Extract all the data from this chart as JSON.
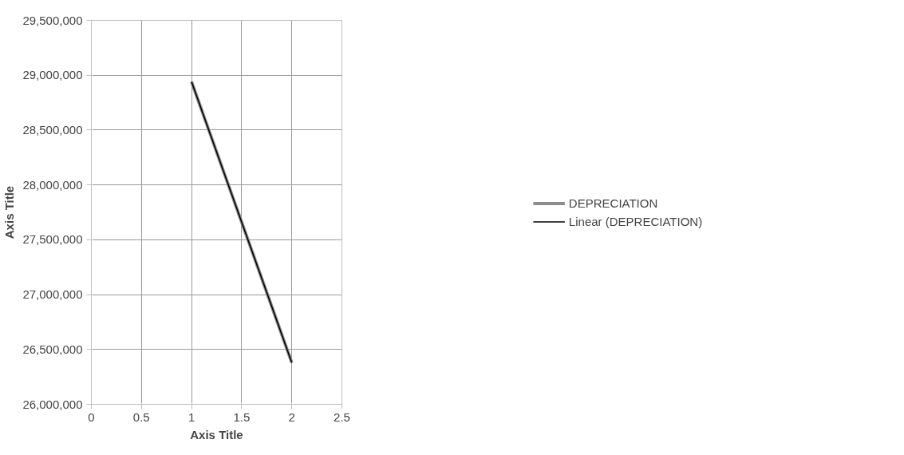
{
  "chart_data": {
    "type": "line",
    "xlabel": "Axis Title",
    "ylabel": "Axis Title",
    "x": [
      1,
      2
    ],
    "series": [
      {
        "name": "DEPRECIATION",
        "color": "#8c8c8c",
        "values": [
          28940000,
          26380000
        ]
      },
      {
        "name": "Linear (DEPRECIATION)",
        "type": "line",
        "x": [
          1,
          2
        ],
        "color": "#000000",
        "values": [
          28940000,
          26380000
        ]
      }
    ],
    "xlim": [
      0,
      2.5
    ],
    "xticks": [
      0,
      0.5,
      1,
      1.5,
      2,
      2.5
    ],
    "ylim": [
      26000000,
      29500000
    ],
    "yticks": [
      {
        "value": 26000000,
        "label": "26,000,000"
      },
      {
        "value": 26500000,
        "label": "26,500,000"
      },
      {
        "value": 27000000,
        "label": "27,000,000"
      },
      {
        "value": 27500000,
        "label": "27,500,000"
      },
      {
        "value": 28000000,
        "label": "28,000,000"
      },
      {
        "value": 28500000,
        "label": "28,500,000"
      },
      {
        "value": 29000000,
        "label": "29,000,000"
      },
      {
        "value": 29500000,
        "label": "29,500,000"
      }
    ],
    "grid": true,
    "legend": "right",
    "marker": "none",
    "line_style": "solid"
  }
}
